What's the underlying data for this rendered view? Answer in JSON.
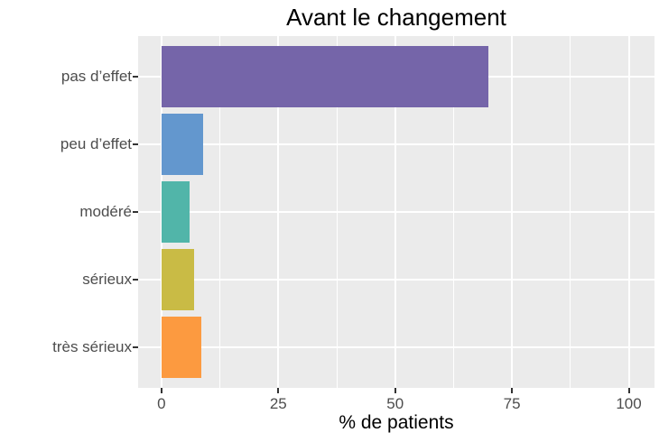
{
  "chart_data": {
    "type": "bar",
    "orientation": "horizontal",
    "title": "Avant le changement",
    "xlabel": "% de patients",
    "ylabel": "",
    "categories": [
      "pas d’effet",
      "peu d’effet",
      "modéré",
      "sérieux",
      "très sérieux"
    ],
    "values": [
      70,
      9,
      6,
      7,
      8.5
    ],
    "bar_colors": [
      "#7565A9",
      "#6397CE",
      "#51B5A9",
      "#C9BB45",
      "#FC9A40"
    ],
    "xlim": [
      0,
      100
    ],
    "x_major_ticks": [
      0,
      25,
      50,
      75,
      100
    ],
    "x_minor_ticks": [
      12.5,
      37.5,
      62.5,
      87.5
    ],
    "grid": true,
    "legend": false,
    "style": {
      "panel_background": "#EBEBEB",
      "gridline_color": "#FFFFFF",
      "axis_text_color": "#4D4D4D",
      "tick_mark_color": "#333333",
      "title_color": "#000000",
      "figure_background": "#FFFFFF"
    }
  }
}
